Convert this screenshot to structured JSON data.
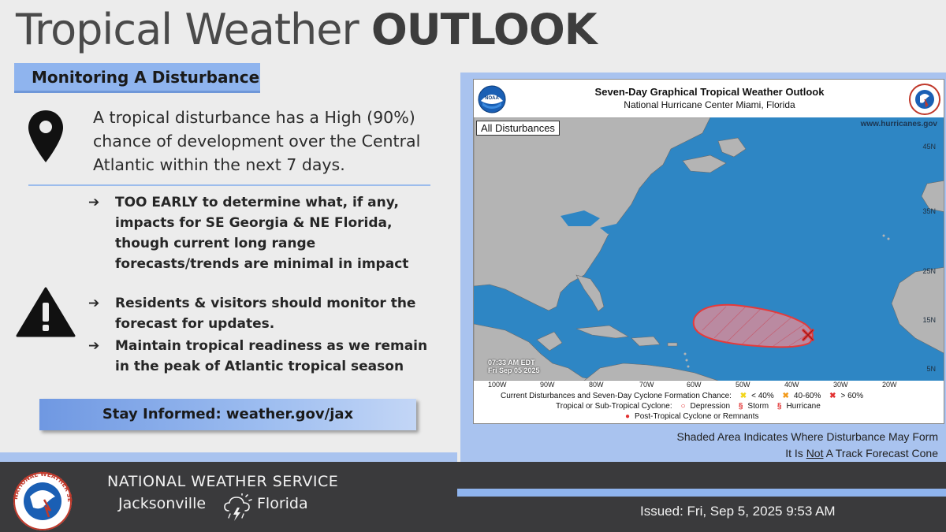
{
  "header": {
    "title_light": "Tropical Weather ",
    "title_bold": "OUTLOOK",
    "subtitle": "Monitoring A Disturbance"
  },
  "intro": {
    "icon": "map-pin-icon",
    "text": "A tropical disturbance has a High (90%) chance of development over the Central Atlantic within the next 7 days."
  },
  "bullets": [
    "TOO EARLY to determine what, if any, impacts for SE Georgia & NE Florida, though current long range forecasts/trends are minimal in impact",
    "Residents & visitors should monitor the forecast for updates.",
    "Maintain tropical readiness as we remain in the peak of Atlantic tropical season"
  ],
  "bullet_arrow": "➔",
  "warning_icon": "warning-triangle-icon",
  "stay_informed": "Stay Informed: weather.gov/jax",
  "map": {
    "title": "Seven-Day Graphical Tropical Weather Outlook",
    "subtitle": "National Hurricane Center  Miami, Florida",
    "selector": "All Disturbances",
    "website": "www.hurricanes.gov",
    "timestamp_line1": "07:33 AM EDT",
    "timestamp_line2": "Fri Sep 05 2025",
    "lat_labels": [
      "45N",
      "35N",
      "25N",
      "15N",
      "5N"
    ],
    "lon_labels": [
      "100W",
      "90W",
      "80W",
      "70W",
      "60W",
      "50W",
      "40W",
      "30W",
      "20W"
    ],
    "legend": {
      "row1_label": "Current Disturbances and Seven-Day Cyclone Formation Chance:",
      "low": "< 40%",
      "medium": "40-60%",
      "high": "> 60%",
      "row2_label": "Tropical or Sub-Tropical Cyclone:",
      "depression": "Depression",
      "storm": "Storm",
      "hurricane": "Hurricane",
      "row3_label": "Post-Tropical Cyclone or Remnants"
    },
    "colors": {
      "ocean": "#2e86c4",
      "land": "#b4b4b4",
      "outline": "#e63a3a",
      "low": "#f2d51a",
      "medium": "#f29a1a",
      "high": "#e23232"
    }
  },
  "shaded_note": {
    "line1": "Shaded Area Indicates Where Disturbance May Form",
    "line2_pre": "It Is ",
    "line2_underline": "Not",
    "line2_post": " A Track Forecast Cone"
  },
  "footer": {
    "agency": "NATIONAL WEATHER SERVICE",
    "office_left": "Jacksonville",
    "office_right": "Florida",
    "issued": "Issued: Fri, Sep 5, 2025 9:53 AM",
    "logo_text": "NATIONAL WEATHER SERVICE"
  }
}
